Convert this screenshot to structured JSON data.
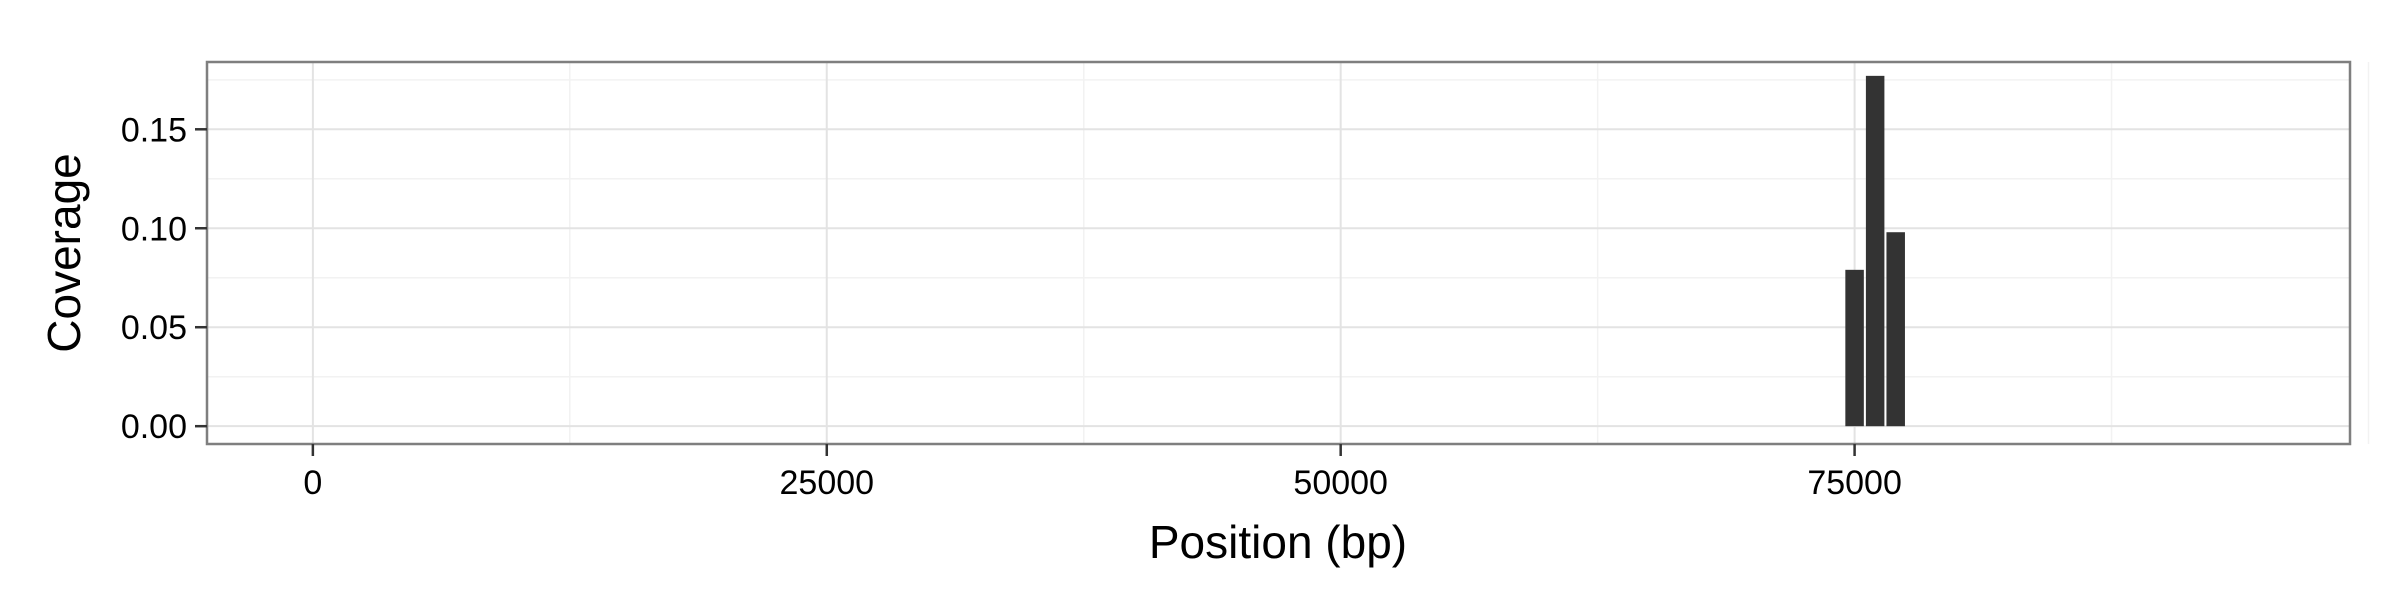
{
  "chart_data": {
    "type": "bar",
    "title": "",
    "xlabel": "Position (bp)",
    "ylabel": "Coverage",
    "x_ticks": [
      0,
      25000,
      50000,
      75000
    ],
    "y_ticks": [
      0.0,
      0.05,
      0.1,
      0.15
    ],
    "y_tick_labels": [
      "0.00",
      "0.05",
      "0.10",
      "0.15"
    ],
    "xlim": [
      -5150,
      99100
    ],
    "ylim": [
      -0.009,
      0.184
    ],
    "bin_width": 1000,
    "x": [
      75000,
      76000,
      77000
    ],
    "values": [
      0.079,
      0.177,
      0.098
    ],
    "grid": true,
    "legend": "none",
    "bar_color": "#333333",
    "panel_border_color": "#7f7f7f",
    "grid_major_color": "#e3e3e3",
    "grid_minor_color": "#f2f2f2"
  }
}
